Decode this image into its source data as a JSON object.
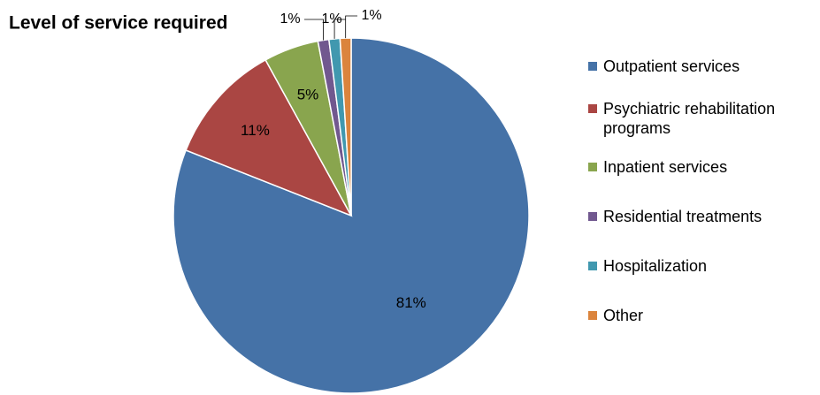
{
  "chart_data": {
    "type": "pie",
    "title": "Level of service required",
    "categories": [
      "Outpatient services",
      "Psychiatric rehabilitation programs",
      "Inpatient services",
      "Residential treatments",
      "Hospitalization",
      "Other"
    ],
    "values": [
      81,
      11,
      5,
      1,
      1,
      1
    ],
    "value_labels": [
      "81%",
      "11%",
      "5%",
      "1%",
      "1%",
      "1%"
    ],
    "colors": [
      "#4572a7",
      "#aa4643",
      "#89a54e",
      "#71588f",
      "#4198af",
      "#db843d"
    ],
    "legend": "right"
  }
}
